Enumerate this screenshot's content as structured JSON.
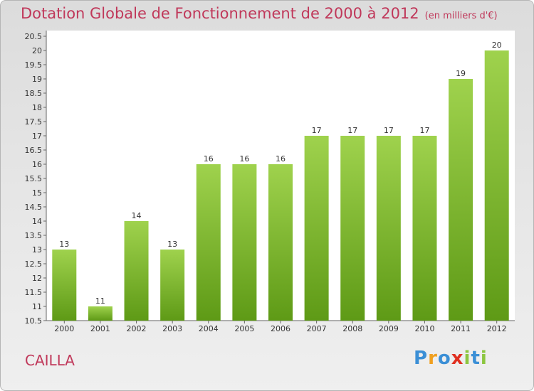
{
  "title": "Dotation Globale de Fonctionnement de 2000 à 2012",
  "unit": "(en milliers d'€)",
  "place": "CAILLA",
  "logo": {
    "letters": [
      "P",
      "r",
      "o",
      "x",
      "i",
      "t",
      "i"
    ],
    "colors": [
      "#3b8fd6",
      "#f0a020",
      "#3b8fd6",
      "#e03020",
      "#8cc640",
      "#3b8fd6",
      "#8cc640"
    ]
  },
  "colors": {
    "bar_top": "#9fd24d",
    "bar_bottom": "#5e9a16",
    "text": "#c0385a"
  },
  "chart_data": {
    "type": "bar",
    "categories": [
      "2000",
      "2001",
      "2002",
      "2003",
      "2004",
      "2005",
      "2006",
      "2007",
      "2008",
      "2009",
      "2010",
      "2011",
      "2012"
    ],
    "values": [
      13,
      11,
      14,
      13,
      16,
      16,
      16,
      17,
      17,
      17,
      17,
      19,
      20
    ],
    "value_labels": [
      "13",
      "11",
      "14",
      "13",
      "16",
      "16",
      "16",
      "17",
      "17",
      "17",
      "17",
      "19",
      "20"
    ],
    "ylim": [
      10.5,
      20.5
    ],
    "yticks": [
      "10.5",
      "11",
      "11.5",
      "12",
      "12.5",
      "13",
      "13.5",
      "14",
      "14.5",
      "15",
      "15.5",
      "16",
      "16.5",
      "17",
      "17.5",
      "18",
      "18.5",
      "19",
      "19.5",
      "20",
      "20.5"
    ],
    "grid": false,
    "legend": "none"
  }
}
